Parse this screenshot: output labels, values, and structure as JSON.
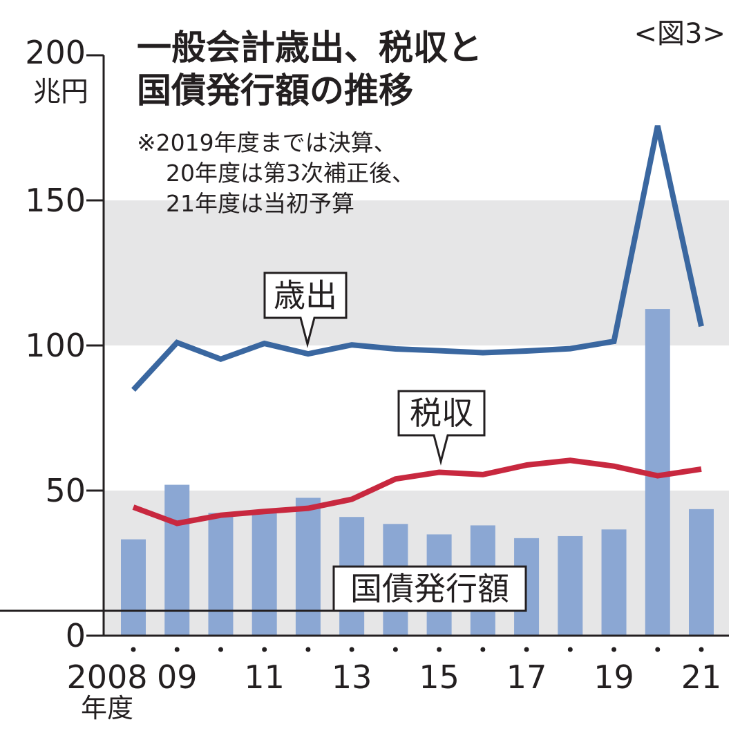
{
  "chart_data": {
    "type": "bar+line",
    "title_lines": [
      "一般会計歳出、税収と",
      "国債発行額の推移"
    ],
    "figure_label": "<図3>",
    "note_lines": [
      "※2019年度までは決算、",
      "20年度は第3次補正後、",
      "21年度は当初予算"
    ],
    "ylabel": "兆円",
    "ylim": [
      0,
      200
    ],
    "yticks": [
      "0",
      "50",
      "100",
      "150",
      "200"
    ],
    "xlabel": "年度",
    "x": [
      2008,
      2009,
      2010,
      2011,
      2012,
      2013,
      2014,
      2015,
      2016,
      2017,
      2018,
      2019,
      2020,
      2021
    ],
    "xtick_labels": [
      "2008",
      "09",
      "",
      "11",
      "",
      "13",
      "",
      "15",
      "",
      "17",
      "",
      "19",
      "",
      "21"
    ],
    "series": [
      {
        "name": "国債発行額",
        "type": "bar",
        "color": "#8ba7d3",
        "values": [
          33.2,
          52.0,
          42.3,
          42.8,
          47.5,
          40.9,
          38.5,
          34.9,
          38.0,
          33.6,
          34.3,
          36.6,
          112.6,
          43.6
        ]
      },
      {
        "name": "歳出",
        "type": "line",
        "color": "#3a67a0",
        "values": [
          84.7,
          101.0,
          95.3,
          100.7,
          97.1,
          100.2,
          98.8,
          98.2,
          97.5,
          98.1,
          98.9,
          101.4,
          175.7,
          106.6
        ]
      },
      {
        "name": "税収",
        "type": "line",
        "color": "#c8283f",
        "values": [
          44.3,
          38.7,
          41.5,
          42.8,
          43.9,
          47.0,
          54.0,
          56.3,
          55.5,
          58.8,
          60.4,
          58.4,
          55.1,
          57.4
        ]
      }
    ],
    "shaded_bands": [
      [
        0,
        50
      ],
      [
        100,
        150
      ]
    ],
    "band_color": "#e6e6e7"
  }
}
